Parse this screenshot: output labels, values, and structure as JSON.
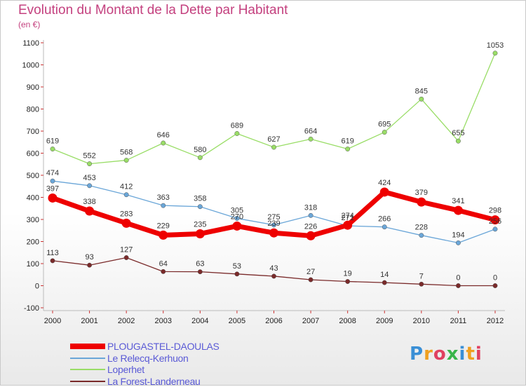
{
  "title": "Evolution du Montant de la Dette par Habitant",
  "subtitle": "(en €)",
  "logo": {
    "text": "Proxiti",
    "letters": [
      {
        "ch": "P",
        "color": "#3a8fd6"
      },
      {
        "ch": "r",
        "color": "#f0a020"
      },
      {
        "ch": "o",
        "color": "#e04060"
      },
      {
        "ch": "x",
        "color": "#39b54a"
      },
      {
        "ch": "i",
        "color": "#3a8fd6"
      },
      {
        "ch": "t",
        "color": "#f0a020"
      },
      {
        "ch": "i",
        "color": "#e04060"
      }
    ]
  },
  "chart_data": {
    "type": "line",
    "title": "Evolution du Montant de la Dette par Habitant",
    "ylabel": "(en €)",
    "x": [
      "2000",
      "2001",
      "2002",
      "2003",
      "2004",
      "2005",
      "2006",
      "2007",
      "2008",
      "2009",
      "2010",
      "2011",
      "2012"
    ],
    "ylim": [
      -100,
      1100
    ],
    "yticks": [
      -100,
      0,
      100,
      200,
      300,
      400,
      500,
      600,
      700,
      800,
      900,
      1000,
      1100
    ],
    "grid": false,
    "legend": "bottom-left",
    "series": [
      {
        "name": "PLOUGASTEL-DAOULAS",
        "color": "#ee0000",
        "values": [
          397,
          338,
          283,
          229,
          235,
          270,
          239,
          226,
          274,
          424,
          379,
          341,
          298
        ],
        "labels": [
          "397",
          "338",
          "283",
          "229",
          "235",
          "270",
          "239",
          "226",
          "274",
          "424",
          "379",
          "341",
          "298"
        ]
      },
      {
        "name": "Le Relecq-Kerhuon",
        "color": "#6aa6d8",
        "values": [
          474,
          453,
          412,
          363,
          358,
          305,
          275,
          318,
          271,
          266,
          228,
          194,
          256
        ],
        "labels": [
          "474",
          "453",
          "412",
          "363",
          "358",
          "305",
          "275",
          "318",
          "271",
          "266",
          "228",
          "194",
          "256"
        ]
      },
      {
        "name": "Loperhet",
        "color": "#99dd66",
        "values": [
          619,
          552,
          568,
          646,
          580,
          689,
          627,
          664,
          619,
          695,
          845,
          655,
          1053
        ],
        "labels": [
          "619",
          "552",
          "568",
          "646",
          "580",
          "689",
          "627",
          "664",
          "619",
          "695",
          "845",
          "655",
          "1053"
        ]
      },
      {
        "name": "La Forest-Landerneau",
        "color": "#7a2a2a",
        "values": [
          113,
          93,
          127,
          64,
          63,
          53,
          43,
          27,
          19,
          14,
          7,
          0,
          0
        ],
        "labels": [
          "113",
          "93",
          "127",
          "64",
          "63",
          "53",
          "43",
          "27",
          "19",
          "14",
          "7",
          "0",
          "0"
        ]
      }
    ]
  }
}
